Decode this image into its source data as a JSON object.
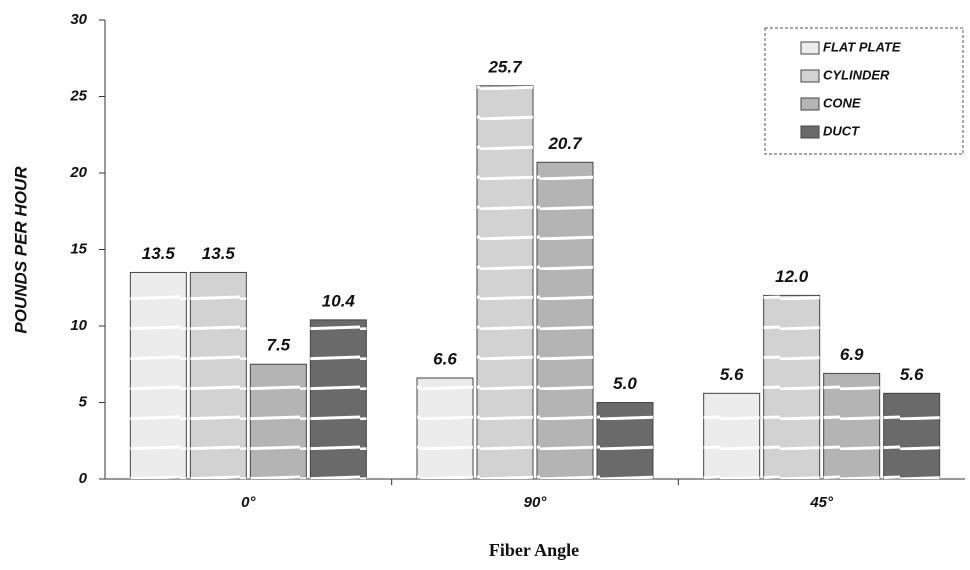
{
  "chart_data": {
    "type": "bar",
    "y_label": "POUNDS PER HOUR",
    "x_label": "Fiber Angle",
    "categories": [
      "0°",
      "90°",
      "45°"
    ],
    "series": [
      {
        "name": "FLAT PLATE",
        "color": "#ececec",
        "values": [
          13.5,
          6.6,
          5.6
        ],
        "value_labels": [
          "13.5",
          "6.6",
          "5.6"
        ]
      },
      {
        "name": "CYLINDER",
        "color": "#d2d2d2",
        "values": [
          13.5,
          25.7,
          12.0
        ],
        "value_labels": [
          "13.5",
          "25.7",
          "12.0"
        ]
      },
      {
        "name": "CONE",
        "color": "#b4b4b4",
        "values": [
          7.5,
          20.7,
          6.9
        ],
        "value_labels": [
          "7.5",
          "20.7",
          "6.9"
        ]
      },
      {
        "name": "DUCT",
        "color": "#6a6a6a",
        "values": [
          10.4,
          5.0,
          5.6
        ],
        "value_labels": [
          "10.4",
          "5.0",
          "5.6"
        ]
      }
    ],
    "ylim": [
      0,
      30
    ],
    "yticks": [
      0,
      5,
      10,
      15,
      20,
      25,
      30
    ],
    "legend": "upper right"
  }
}
